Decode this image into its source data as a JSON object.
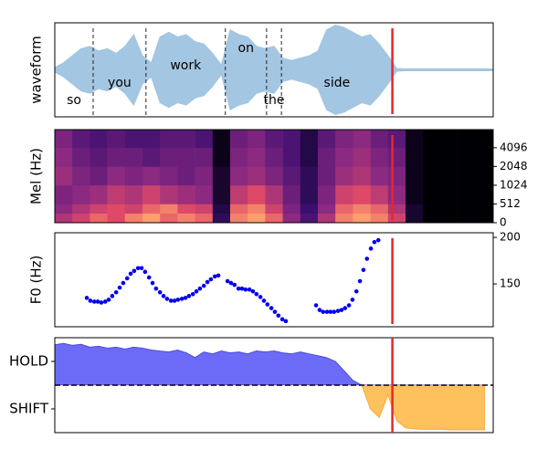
{
  "chart_data": [
    {
      "type": "envelope",
      "ylabel": "waveform",
      "color": "#a3c6e2",
      "xlim": [
        0,
        100
      ],
      "ylim": [
        -1,
        1
      ],
      "x": [
        0,
        2,
        4,
        6,
        8,
        10,
        12,
        14,
        16,
        18,
        20,
        22,
        24,
        26,
        28,
        30,
        32,
        34,
        36,
        38,
        40,
        42,
        44,
        46,
        48,
        50,
        52,
        54,
        56,
        58,
        60,
        62,
        64,
        66,
        68,
        70,
        72,
        74,
        76,
        78,
        80,
        82,
        84,
        86,
        88,
        90,
        92,
        94,
        96,
        98,
        100
      ],
      "values": [
        0.05,
        0.15,
        0.3,
        0.45,
        0.5,
        0.4,
        0.45,
        0.35,
        0.5,
        0.75,
        0.3,
        0.15,
        0.7,
        0.8,
        0.7,
        0.75,
        0.6,
        0.55,
        0.35,
        0.1,
        0.85,
        0.75,
        0.7,
        0.5,
        0.45,
        0.5,
        0.25,
        0.2,
        0.25,
        0.3,
        0.4,
        0.85,
        0.95,
        0.9,
        0.8,
        0.7,
        0.75,
        0.55,
        0.3,
        0.03,
        0.02,
        0.02,
        0.02,
        0.02,
        0.02,
        0.02,
        0.02,
        0.02,
        0.02,
        0.02,
        0.02
      ],
      "words": [
        {
          "text": "so",
          "start": 0,
          "end": 8.75
        },
        {
          "text": "you",
          "start": 8.75,
          "end": 20.8
        },
        {
          "text": "work",
          "start": 20.8,
          "end": 38.9
        },
        {
          "text": "on",
          "start": 38.9,
          "end": 48.3
        },
        {
          "text": "the",
          "start": 48.3,
          "end": 51.7
        },
        {
          "text": "side",
          "start": 51.7,
          "end": 77
        }
      ],
      "cursor": 77,
      "cursor_color": "#e8262a"
    },
    {
      "type": "heatmap",
      "ylabel": "Mel (Hz)",
      "colormap": "magma",
      "xlim": [
        0,
        100
      ],
      "ylim": [
        0,
        8000
      ],
      "yscale": "symlog",
      "linthresh": 512,
      "yticks": [
        0,
        512,
        1024,
        2048,
        4096
      ],
      "x_edges": [
        0,
        4,
        8,
        12,
        16,
        20,
        24,
        28,
        32,
        36,
        40,
        44,
        48,
        52,
        56,
        60,
        64,
        68,
        72,
        76,
        80,
        84,
        88,
        92,
        96,
        100
      ],
      "row_edges": [
        0,
        256,
        512,
        1024,
        2048,
        4096,
        8000
      ],
      "values": [
        [
          0.6,
          0.7,
          0.8,
          0.75,
          0.85,
          0.9,
          0.8,
          0.85,
          0.8,
          0.2,
          0.85,
          0.9,
          0.8,
          0.5,
          0.3,
          0.6,
          0.85,
          0.9,
          0.85,
          0.7,
          0.1,
          0,
          0,
          0,
          0
        ],
        [
          0.5,
          0.6,
          0.7,
          0.75,
          0.7,
          0.8,
          0.85,
          0.75,
          0.7,
          0.15,
          0.8,
          0.85,
          0.7,
          0.45,
          0.25,
          0.5,
          0.8,
          0.85,
          0.8,
          0.6,
          0.1,
          0,
          0,
          0,
          0
        ],
        [
          0.45,
          0.5,
          0.55,
          0.65,
          0.6,
          0.7,
          0.6,
          0.55,
          0.5,
          0.1,
          0.65,
          0.75,
          0.6,
          0.4,
          0.2,
          0.45,
          0.7,
          0.75,
          0.65,
          0.5,
          0.05,
          0,
          0,
          0,
          0
        ],
        [
          0.55,
          0.45,
          0.4,
          0.5,
          0.45,
          0.5,
          0.45,
          0.4,
          0.45,
          0.1,
          0.5,
          0.55,
          0.45,
          0.35,
          0.2,
          0.4,
          0.55,
          0.6,
          0.5,
          0.45,
          0.05,
          0,
          0,
          0,
          0
        ],
        [
          0.5,
          0.4,
          0.35,
          0.4,
          0.4,
          0.35,
          0.4,
          0.4,
          0.4,
          0.05,
          0.45,
          0.5,
          0.4,
          0.3,
          0.15,
          0.4,
          0.5,
          0.55,
          0.45,
          0.4,
          0.05,
          0,
          0,
          0,
          0
        ],
        [
          0.45,
          0.35,
          0.3,
          0.35,
          0.3,
          0.3,
          0.35,
          0.35,
          0.3,
          0.05,
          0.4,
          0.45,
          0.35,
          0.3,
          0.15,
          0.35,
          0.45,
          0.5,
          0.4,
          0.35,
          0.05,
          0,
          0,
          0,
          0
        ]
      ],
      "cursor": 77,
      "cursor_color": "#e8262a"
    },
    {
      "type": "scatter",
      "ylabel": "F0 (Hz)",
      "color": "#0000ee",
      "xlim": [
        0,
        100
      ],
      "ylim": [
        104,
        205
      ],
      "yticks": [
        150,
        200
      ],
      "x": [
        7.3,
        8.1,
        9.0,
        9.8,
        10.6,
        11.5,
        12.3,
        13.1,
        14.0,
        14.8,
        15.6,
        16.5,
        17.3,
        18.1,
        19.0,
        19.8,
        20.6,
        21.5,
        22.3,
        23.1,
        24.0,
        24.8,
        25.6,
        26.5,
        27.3,
        28.1,
        29.0,
        29.8,
        30.6,
        31.5,
        32.3,
        33.1,
        34.0,
        34.8,
        35.6,
        36.5,
        37.3,
        39.4,
        40.2,
        41.0,
        41.9,
        42.7,
        43.5,
        44.4,
        45.2,
        46.0,
        46.9,
        47.7,
        48.5,
        49.4,
        50.2,
        51.0,
        51.9,
        52.7,
        59.6,
        60.4,
        61.2,
        62.1,
        62.9,
        63.7,
        64.6,
        65.4,
        66.2,
        67.1,
        67.9,
        68.8,
        69.6,
        70.4,
        71.2,
        72.1,
        72.9,
        73.8
      ],
      "values": [
        135,
        132,
        131,
        131,
        130,
        131,
        133,
        137,
        141,
        146,
        151,
        156,
        161,
        164,
        167,
        167,
        163,
        157,
        151,
        145,
        141,
        137,
        134,
        132,
        132,
        133,
        134,
        135,
        137,
        139,
        142,
        145,
        148,
        152,
        155,
        158,
        159,
        153,
        151,
        149,
        145,
        145,
        144,
        144,
        142,
        139,
        136,
        132,
        128,
        124,
        120,
        116,
        112,
        110,
        127,
        122,
        120,
        120,
        120,
        120,
        121,
        122,
        124,
        127,
        133,
        142,
        153,
        165,
        177,
        188,
        195,
        197
      ],
      "cursor": 77,
      "cursor_color": "#e8262a"
    },
    {
      "type": "area",
      "positive_color": "#6b6bf7",
      "negative_color": "#ffc15e",
      "xlim": [
        0,
        100
      ],
      "ylim": [
        -1,
        1
      ],
      "yticks": [
        {
          "value": 0.5,
          "label": "HOLD"
        },
        {
          "value": -0.5,
          "label": "SHIFT"
        }
      ],
      "hline": 0,
      "x": [
        0,
        2,
        4,
        6,
        8,
        10,
        12,
        14,
        16,
        18,
        20,
        22,
        24,
        26,
        28,
        30,
        32,
        34,
        36,
        38,
        40,
        42,
        44,
        46,
        48,
        50,
        52,
        54,
        56,
        58,
        60,
        62,
        64,
        66,
        68,
        70,
        72,
        74,
        76,
        78,
        80,
        82,
        84,
        86,
        88,
        90,
        92,
        94,
        96,
        98
      ],
      "values": [
        0.85,
        0.88,
        0.84,
        0.86,
        0.8,
        0.82,
        0.78,
        0.8,
        0.76,
        0.8,
        0.78,
        0.74,
        0.72,
        0.7,
        0.74,
        0.68,
        0.58,
        0.7,
        0.66,
        0.72,
        0.68,
        0.7,
        0.66,
        0.72,
        0.7,
        0.72,
        0.68,
        0.66,
        0.7,
        0.66,
        0.62,
        0.58,
        0.5,
        0.3,
        0.1,
        0,
        -0.5,
        -0.68,
        -0.2,
        -0.75,
        -0.9,
        -0.92,
        -0.93,
        -0.93,
        -0.93,
        -0.94,
        -0.94,
        -0.94,
        -0.94,
        -0.94
      ],
      "cursor": 77,
      "cursor_color": "#e8262a"
    }
  ]
}
